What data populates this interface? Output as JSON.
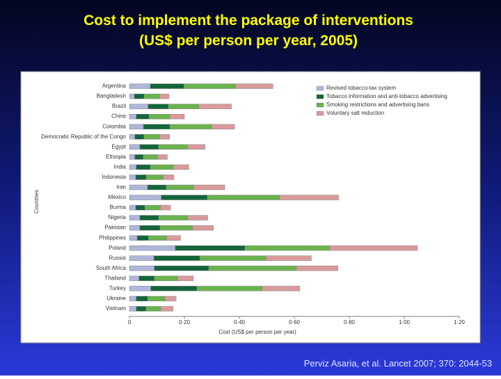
{
  "title": "Cost to implement the package of interventions",
  "subtitle": "(US$ per person per year, 2005)",
  "citation": "Perviz Asaria, et al. Lancet 2007; 370: 2044-53",
  "chart_data": {
    "type": "bar",
    "orientation": "horizontal",
    "stacked": true,
    "xlabel": "Cost (US$ per person per year)",
    "ylabel": "Countries",
    "categories": [
      "Argentina",
      "Bangladesh",
      "Brazil",
      "China",
      "Colombia",
      "Democratic Republic of the Congo",
      "Egypt",
      "Ethiopia",
      "India",
      "Indonesia",
      "Iran",
      "Mexico",
      "Burma",
      "Nigeria",
      "Pakistan",
      "Philippines",
      "Poland",
      "Russia",
      "South Africa",
      "Thailand",
      "Turkey",
      "Ukraine",
      "Vietnam"
    ],
    "series": [
      {
        "name": "Revised tobacco-tax system",
        "color": "#aeb6da",
        "values": [
          0.076,
          0.018,
          0.068,
          0.025,
          0.051,
          0.02,
          0.038,
          0.02,
          0.025,
          0.023,
          0.066,
          0.116,
          0.023,
          0.038,
          0.038,
          0.028,
          0.167,
          0.089,
          0.091,
          0.035,
          0.078,
          0.025,
          0.025
        ]
      },
      {
        "name": "Tobacco information and anti-tobacco advertising",
        "color": "#14653a",
        "values": [
          0.122,
          0.035,
          0.073,
          0.046,
          0.096,
          0.033,
          0.068,
          0.03,
          0.051,
          0.038,
          0.068,
          0.167,
          0.033,
          0.068,
          0.073,
          0.041,
          0.253,
          0.167,
          0.197,
          0.056,
          0.167,
          0.041,
          0.035
        ]
      },
      {
        "name": "Smoking restrictions and advertising bans",
        "color": "#6bb24e",
        "values": [
          0.187,
          0.056,
          0.111,
          0.076,
          0.152,
          0.058,
          0.106,
          0.053,
          0.084,
          0.061,
          0.099,
          0.263,
          0.056,
          0.106,
          0.119,
          0.066,
          0.309,
          0.241,
          0.319,
          0.084,
          0.238,
          0.063,
          0.053
        ]
      },
      {
        "name": "Voluntary salt reduction",
        "color": "#d99a9c",
        "values": [
          0.137,
          0.035,
          0.119,
          0.053,
          0.084,
          0.035,
          0.063,
          0.035,
          0.056,
          0.04,
          0.114,
          0.215,
          0.038,
          0.073,
          0.076,
          0.051,
          0.319,
          0.165,
          0.152,
          0.058,
          0.137,
          0.041,
          0.046
        ]
      }
    ],
    "xlim": [
      0,
      1.2
    ],
    "xticks": [
      0,
      {
        "value": 0.2,
        "label": "0·20"
      },
      {
        "value": 0.4,
        "label": "0·40"
      },
      {
        "value": 0.6,
        "label": "0·60"
      },
      {
        "value": 0.8,
        "label": "0·80"
      },
      {
        "value": 1.0,
        "label": "1·00"
      },
      {
        "value": 1.2,
        "label": "1·20"
      }
    ],
    "grid": false,
    "legend": "upper right"
  }
}
